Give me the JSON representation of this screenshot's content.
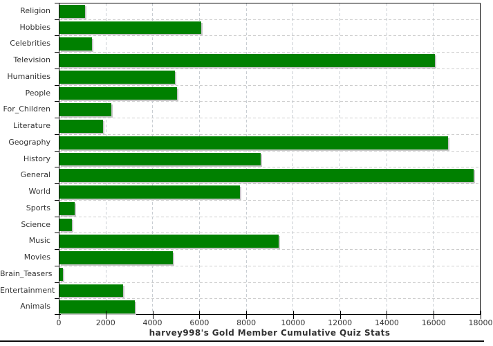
{
  "chart_data": {
    "type": "bar",
    "orientation": "horizontal",
    "title": "harvey998's Gold Member Cumulative Quiz Stats",
    "categories": [
      "Religion",
      "Hobbies",
      "Celebrities",
      "Television",
      "Humanities",
      "People",
      "For_Children",
      "Literature",
      "Geography",
      "History",
      "General",
      "World",
      "Sports",
      "Science",
      "Music",
      "Movies",
      "Brain_Teasers",
      "Entertainment",
      "Animals"
    ],
    "values": [
      1080,
      6060,
      1400,
      16060,
      4940,
      5030,
      2230,
      1870,
      16620,
      8600,
      17710,
      7710,
      660,
      520,
      9370,
      4850,
      160,
      2730,
      3230
    ],
    "xlabel": "",
    "ylabel": "",
    "xlim": [
      0,
      18000
    ],
    "x_ticks": [
      0,
      2000,
      4000,
      6000,
      8000,
      10000,
      12000,
      14000,
      16000,
      18000
    ],
    "grid": "dashed",
    "legend": "none",
    "colors": {
      "bar": "#008000",
      "bar_shadow": "#c6c6c6",
      "grid_horizontal": "#cdcdcd",
      "grid_vertical": "#c9ced3",
      "axis": "#000000",
      "text": "#333333",
      "bottom_rule": "#0b0b0b"
    }
  }
}
